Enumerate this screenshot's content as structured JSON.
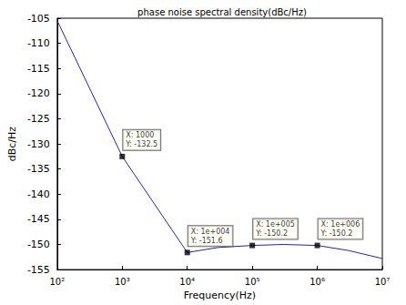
{
  "chart_data": {
    "type": "line",
    "title": "phase noise spectral density(dBc/Hz)",
    "x_label": "Frequency(Hz)",
    "y_label": "dBc/Hz",
    "x": [
      100,
      1000,
      10000,
      30000,
      100000,
      300000,
      1000000,
      3000000,
      10000000
    ],
    "values": [
      -105.5,
      -132.5,
      -151.6,
      -150.6,
      -150.2,
      -150.0,
      -150.2,
      -151.2,
      -152.8
    ],
    "color": "#2222b8",
    "log": "x",
    "grid": false,
    "xlim": [
      100,
      10000000
    ],
    "ylim": [
      -155,
      -105
    ],
    "xticks": [
      {
        "value": 100,
        "label": "10²"
      },
      {
        "value": 1000,
        "label": "10³"
      },
      {
        "value": 10000,
        "label": "10⁴"
      },
      {
        "value": 100000,
        "label": "10⁵"
      },
      {
        "value": 1000000,
        "label": "10⁶"
      },
      {
        "value": 10000000,
        "label": "10⁷"
      }
    ],
    "yticks": [
      -155,
      -150,
      -145,
      -140,
      -135,
      -130,
      -125,
      -120,
      -115,
      -110,
      -105
    ],
    "annotations": [
      {
        "x": 1000,
        "y": -132.5,
        "label": "X: 1000\nY: -132.5"
      },
      {
        "x": 10000,
        "y": -151.6,
        "label": "X: 1e+004\nY: -151.6"
      },
      {
        "x": 100000,
        "y": -150.2,
        "label": "X: 1e+005\nY: -150.2"
      },
      {
        "x": 1000000,
        "y": -150.2,
        "label": "X: 1e+006\nY: -150.2"
      }
    ]
  }
}
